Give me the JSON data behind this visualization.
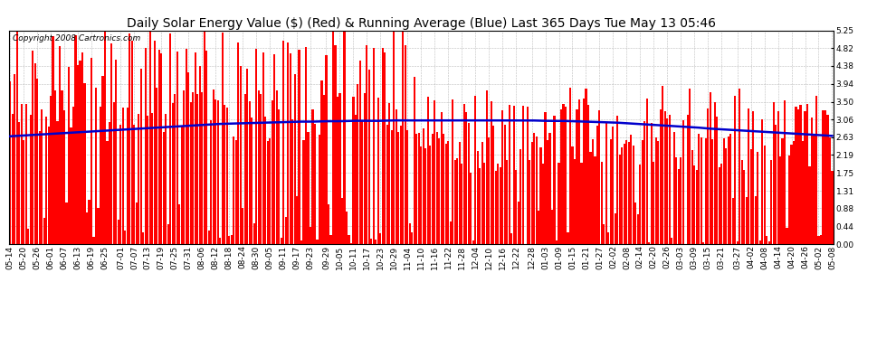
{
  "title": "Daily Solar Energy Value ($) (Red) & Running Average (Blue) Last 365 Days Tue May 13 05:46",
  "copyright": "Copyright 2008 Cartronics.com",
  "ylim": [
    0.0,
    5.25
  ],
  "yticks": [
    0.0,
    0.44,
    0.88,
    1.31,
    1.75,
    2.19,
    2.63,
    3.06,
    3.5,
    3.94,
    4.38,
    4.82,
    5.25
  ],
  "bar_color": "#FF0000",
  "avg_color": "#0000CC",
  "bg_color": "#FFFFFF",
  "grid_color": "#AAAAAA",
  "x_labels": [
    "05-14",
    "05-20",
    "05-26",
    "06-01",
    "06-07",
    "06-13",
    "06-19",
    "06-25",
    "07-01",
    "07-07",
    "07-13",
    "07-19",
    "07-25",
    "07-31",
    "08-06",
    "08-12",
    "08-18",
    "08-24",
    "08-30",
    "09-05",
    "09-11",
    "09-17",
    "09-23",
    "09-29",
    "10-05",
    "10-11",
    "10-17",
    "10-23",
    "10-29",
    "11-04",
    "11-10",
    "11-16",
    "11-22",
    "11-28",
    "12-04",
    "12-10",
    "12-16",
    "12-22",
    "12-28",
    "01-03",
    "01-09",
    "01-15",
    "01-21",
    "01-27",
    "02-02",
    "02-08",
    "02-14",
    "02-20",
    "02-26",
    "03-03",
    "03-09",
    "03-15",
    "03-21",
    "03-27",
    "04-02",
    "04-08",
    "04-14",
    "04-20",
    "04-26",
    "05-02",
    "05-08"
  ],
  "avg_values": [
    2.65,
    2.67,
    2.69,
    2.71,
    2.73,
    2.75,
    2.77,
    2.79,
    2.81,
    2.83,
    2.85,
    2.87,
    2.89,
    2.91,
    2.93,
    2.95,
    2.96,
    2.97,
    2.98,
    2.99,
    3.0,
    3.01,
    3.01,
    3.02,
    3.02,
    3.03,
    3.03,
    3.03,
    3.04,
    3.04,
    3.04,
    3.04,
    3.04,
    3.04,
    3.04,
    3.04,
    3.04,
    3.04,
    3.04,
    3.03,
    3.03,
    3.02,
    3.01,
    3.0,
    2.99,
    2.97,
    2.95,
    2.93,
    2.91,
    2.89,
    2.87,
    2.84,
    2.82,
    2.8,
    2.78,
    2.76,
    2.74,
    2.72,
    2.7,
    2.68,
    2.66
  ],
  "title_fontsize": 10,
  "tick_fontsize": 6.5,
  "copyright_fontsize": 6.5
}
